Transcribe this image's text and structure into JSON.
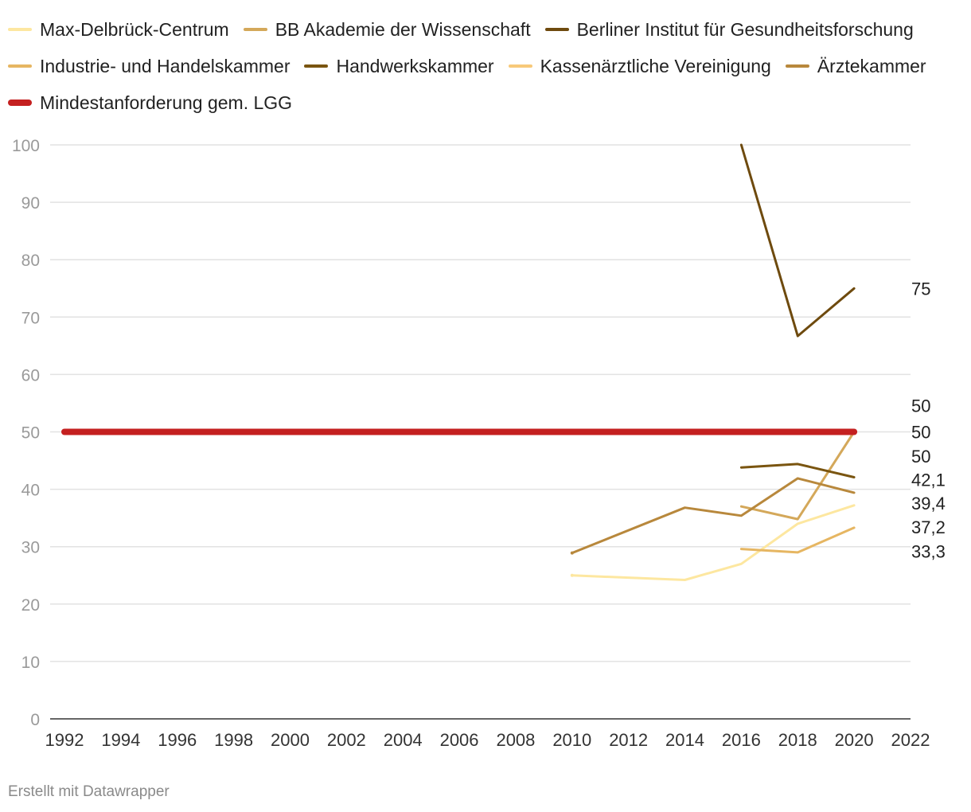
{
  "footer": {
    "credit": "Erstellt mit Datawrapper"
  },
  "chart_data": {
    "type": "line",
    "title": "",
    "xlabel": "",
    "ylabel": "",
    "xlim": [
      1992,
      2022
    ],
    "ylim": [
      0,
      100
    ],
    "x_ticks": [
      1992,
      1994,
      1996,
      1998,
      2000,
      2002,
      2004,
      2006,
      2008,
      2010,
      2012,
      2014,
      2016,
      2018,
      2020,
      2022
    ],
    "y_ticks": [
      0,
      10,
      20,
      30,
      40,
      50,
      60,
      70,
      80,
      90,
      100
    ],
    "grid": "horizontal",
    "legend_position": "top",
    "series": [
      {
        "name": "Max-Delbrück-Centrum",
        "color": "#fde7a0",
        "points": [
          [
            2010,
            25
          ],
          [
            2014,
            24.2
          ],
          [
            2016,
            27
          ],
          [
            2018,
            34
          ],
          [
            2020,
            37.2
          ]
        ],
        "end_label": "37,2"
      },
      {
        "name": "BB Akademie der Wissenschaft",
        "color": "#d4a85a",
        "points": [
          [
            2016,
            37
          ],
          [
            2018,
            34.8
          ],
          [
            2020,
            50
          ]
        ],
        "end_label": "50"
      },
      {
        "name": "Berliner Institut für Gesundheitsforschung",
        "color": "#6e4a0e",
        "points": [
          [
            2016,
            100
          ],
          [
            2018,
            66.7
          ],
          [
            2020,
            75
          ]
        ],
        "end_label": "75"
      },
      {
        "name": "Industrie- und Handelskammer",
        "color": "#e6b662",
        "points": [
          [
            2016,
            29.6
          ],
          [
            2018,
            29
          ],
          [
            2020,
            33.3
          ]
        ],
        "end_label": "33,3"
      },
      {
        "name": "Handwerkskammer",
        "color": "#7a5510",
        "points": [
          [
            2016,
            43.8
          ],
          [
            2018,
            44.4
          ],
          [
            2020,
            42.1
          ]
        ],
        "end_label": "42,1"
      },
      {
        "name": "Kassenärztliche Vereinigung",
        "color": "#f7c97a",
        "points": [
          [
            2020,
            50
          ]
        ],
        "end_label": "50"
      },
      {
        "name": "Ärztekammer",
        "color": "#b8883c",
        "points": [
          [
            2010,
            28.9
          ],
          [
            2014,
            36.8
          ],
          [
            2016,
            35.4
          ],
          [
            2018,
            41.9
          ],
          [
            2020,
            39.4
          ]
        ],
        "end_label": "39,4"
      },
      {
        "name": "Mindestanforderung gem. LGG",
        "color": "#c42020",
        "thick": true,
        "points": [
          [
            1992,
            50
          ],
          [
            2020,
            50
          ]
        ],
        "end_label": "50"
      }
    ]
  }
}
